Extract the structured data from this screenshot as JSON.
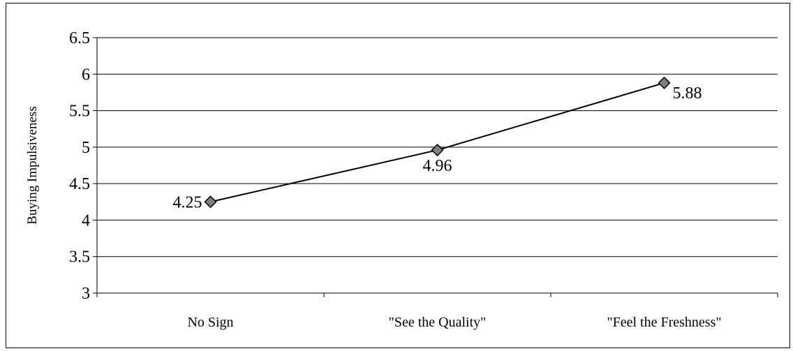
{
  "chart_data": {
    "type": "line",
    "title": "",
    "xlabel": "",
    "ylabel": "Buying Impulsiveness",
    "ylim": [
      3,
      6.5
    ],
    "yticks": [
      3,
      3.5,
      4,
      4.5,
      5,
      5.5,
      6,
      6.5
    ],
    "ytick_labels": [
      "3",
      "3.5",
      "4",
      "4.5",
      "5",
      "5.5",
      "6",
      "6.5"
    ],
    "categories": [
      "No Sign",
      "\"See the Quality\"",
      "\"Feel the Freshness\""
    ],
    "series": [
      {
        "values": [
          4.25,
          4.96,
          5.88
        ]
      }
    ],
    "data_labels": [
      "4.25",
      "4.96",
      "5.88"
    ],
    "grid": true,
    "legend": "none",
    "colors": {
      "line": "#000000",
      "marker": "#808080",
      "grid": "#000000"
    }
  }
}
